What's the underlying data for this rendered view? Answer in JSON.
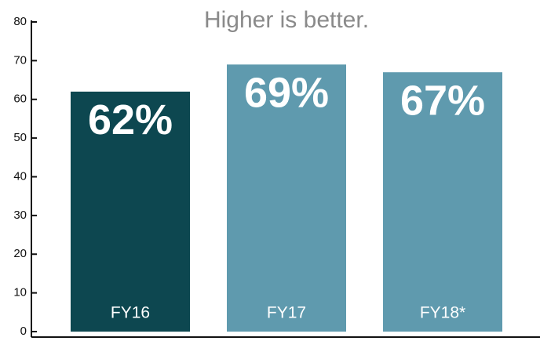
{
  "chart_data": {
    "type": "bar",
    "title": "Higher is better.",
    "categories": [
      "FY16",
      "FY17",
      "FY18*"
    ],
    "values": [
      62,
      69,
      67
    ],
    "value_labels": [
      "62%",
      "69%",
      "67%"
    ],
    "colors": [
      "#0d4750",
      "#5f9aae",
      "#5f9aae"
    ],
    "ylim": [
      0,
      80
    ],
    "yticks": [
      0,
      10,
      20,
      30,
      40,
      50,
      60,
      70,
      80
    ],
    "grid": false
  }
}
